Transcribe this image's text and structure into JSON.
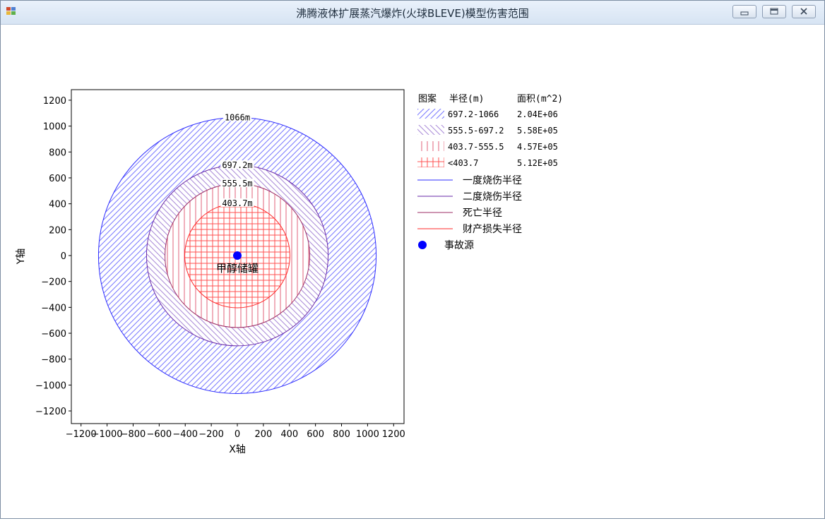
{
  "window": {
    "title": "沸腾液体扩展蒸汽爆炸(火球BLEVE)模型伤害范围",
    "buttons": [
      "minimize",
      "maximize",
      "close"
    ]
  },
  "chart_data": {
    "type": "concentric-zone-plot",
    "xlabel": "X轴",
    "ylabel": "Y轴",
    "xlim": [
      -1250,
      1250
    ],
    "ylim": [
      -1250,
      1250
    ],
    "x_ticks": [
      -1200,
      -1000,
      -800,
      -600,
      -400,
      -200,
      0,
      200,
      400,
      600,
      800,
      1000,
      1200
    ],
    "y_ticks": [
      1200,
      1000,
      800,
      600,
      400,
      200,
      0,
      -200,
      -400,
      -600,
      -800,
      -1000,
      -1200
    ],
    "x_tick_labels": [
      "−1200",
      "−1000",
      "−800",
      "−600",
      "−400",
      "−200",
      "0",
      "200",
      "400",
      "600",
      "800",
      "1000",
      "1200"
    ],
    "y_tick_labels": [
      "1200",
      "1000",
      "800",
      "600",
      "400",
      "200",
      "0",
      "−200",
      "−400",
      "−600",
      "−800",
      "−1000",
      "−1200"
    ],
    "source": {
      "x": 0,
      "y": 0,
      "label": "甲醇储罐",
      "color": "#0000ff"
    },
    "circles": [
      {
        "radius": 1066,
        "label": "1066m",
        "color": "#2c2cff"
      },
      {
        "radius": 697.2,
        "label": "697.2m",
        "color": "#6a2aa8"
      },
      {
        "radius": 555.5,
        "label": "555.5m",
        "color": "#9d2e66"
      },
      {
        "radius": 403.7,
        "label": "403.7m",
        "color": "#ff2a2a"
      }
    ],
    "zones": [
      {
        "inner": 697.2,
        "outer": 1066,
        "pattern": "diagonal-up",
        "color": "#7878ff"
      },
      {
        "inner": 555.5,
        "outer": 697.2,
        "pattern": "diagonal-down",
        "color": "#a98ad8"
      },
      {
        "inner": 403.7,
        "outer": 555.5,
        "pattern": "vertical",
        "color": "#e0607a"
      },
      {
        "inner": 0,
        "outer": 403.7,
        "pattern": "grid",
        "color": "#ff5050"
      }
    ],
    "legend": {
      "placement": "right",
      "header": {
        "pattern": "图案",
        "radius": "半径(m)",
        "area": "面积(m^2)"
      },
      "rows": [
        {
          "radius": "697.2-1066",
          "area": "2.04E+06"
        },
        {
          "radius": "555.5-697.2",
          "area": "5.58E+05"
        },
        {
          "radius": "403.7-555.5",
          "area": "4.57E+05"
        },
        {
          "radius": "<403.7",
          "area": "5.12E+05"
        }
      ],
      "lines": [
        {
          "label": "一度烧伤半径"
        },
        {
          "label": "二度烧伤半径"
        },
        {
          "label": "死亡半径"
        },
        {
          "label": "财产损失半径"
        }
      ],
      "marker": {
        "label": "事故源"
      }
    }
  }
}
